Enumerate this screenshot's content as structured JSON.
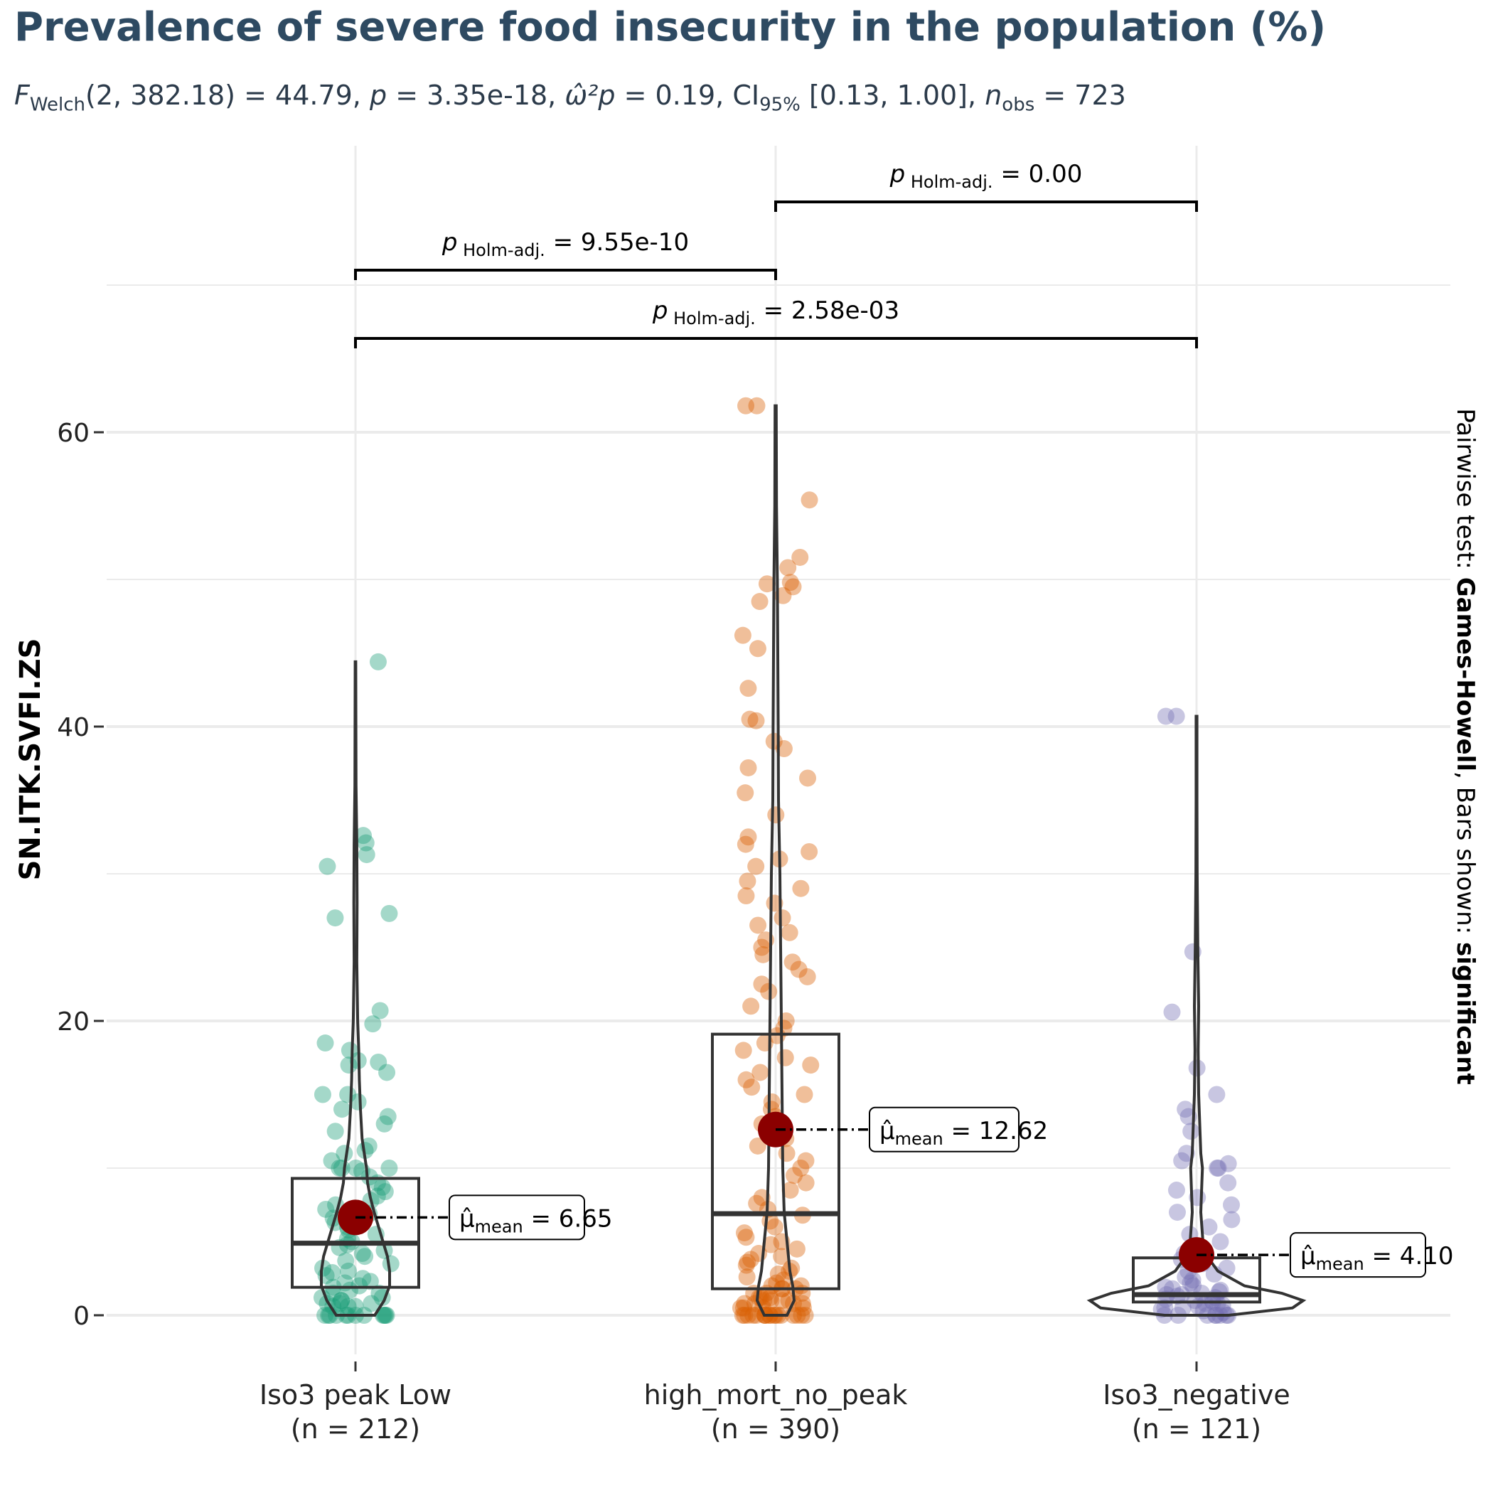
{
  "title": "Prevalence of severe food insecurity in the population (%)",
  "subtitle": {
    "stat_symbol": "F",
    "stat_sub": "Welch",
    "stat_args": "(2, 382.18)",
    "stat_value": "= 44.79,",
    "p_symbol": "p",
    "p_value": "= 3.35e-18,",
    "effect_symbol": "ω̂²p",
    "effect_value": "= 0.19,",
    "ci_label": "CI",
    "ci_sub": "95%",
    "ci_value": "[0.13, 1.00],",
    "n_symbol": "n",
    "n_sub": "obs",
    "n_value": "= 723"
  },
  "side_caption": {
    "prefix": "Pairwise test: ",
    "test": "Games-Howell",
    "middle": ", Bars shown: ",
    "shown": "significant"
  },
  "colors": {
    "group1": "#1b9e77",
    "group2": "#d95f02",
    "group3": "#7570b3",
    "mean_point": "#8b0000",
    "title": "#2e4a62",
    "grid": "#ebebeb"
  },
  "chart_data": {
    "type": "violin-box-scatter",
    "ylabel": "SN.ITK.SVFI.ZS",
    "xlabel": "",
    "ylim": [
      -4,
      80
    ],
    "yticks": [
      0,
      20,
      40,
      60
    ],
    "grid": true,
    "groups": [
      {
        "name": "Iso3 peak  Low",
        "n_label": "(n = 212)",
        "color": "#1b9e77",
        "box": {
          "q1": 1.9,
          "median": 4.9,
          "q3": 9.3
        },
        "mean": 6.65,
        "mean_label": "= 6.65",
        "points": [
          0,
          0,
          0,
          0,
          0,
          0,
          0,
          0,
          0,
          0,
          0,
          0,
          0.6,
          0.6,
          0.6,
          0.8,
          0.8,
          0.8,
          1.0,
          1.0,
          1.2,
          1.2,
          1.5,
          1.5,
          1.7,
          1.9,
          2.0,
          2.2,
          2.3,
          2.5,
          2.7,
          2.9,
          3.0,
          3.2,
          3.5,
          3.7,
          4.0,
          4.2,
          4.4,
          4.6,
          4.8,
          5.0,
          5.2,
          5.5,
          5.8,
          6.0,
          6.3,
          6.6,
          6.9,
          7.2,
          7.5,
          7.8,
          8.1,
          8.4,
          8.7,
          9.0,
          9.4,
          9.8,
          10.0,
          10.0,
          10.0,
          10.0,
          10.5,
          11.0,
          11.2,
          11.5,
          12.5,
          13.0,
          13.5,
          14.0,
          14.5,
          15.0,
          15.0,
          16.5,
          17.0,
          17.2,
          17.3,
          18.0,
          18.5,
          19.8,
          20.7,
          27.0,
          27.3,
          30.5,
          31.3,
          32.1,
          32.6,
          44.4
        ],
        "violin_profile": [
          [
            0,
            0.35
          ],
          [
            1,
            0.52
          ],
          [
            2,
            0.62
          ],
          [
            3,
            0.62
          ],
          [
            4,
            0.58
          ],
          [
            5,
            0.5
          ],
          [
            6,
            0.42
          ],
          [
            7,
            0.34
          ],
          [
            8,
            0.27
          ],
          [
            9,
            0.22
          ],
          [
            10,
            0.2
          ],
          [
            11,
            0.16
          ],
          [
            12,
            0.12
          ],
          [
            14,
            0.09
          ],
          [
            16,
            0.07
          ],
          [
            18,
            0.06
          ],
          [
            20,
            0.04
          ],
          [
            24,
            0.025
          ],
          [
            28,
            0.03
          ],
          [
            32,
            0.025
          ],
          [
            36,
            0.01
          ],
          [
            40,
            0.008
          ],
          [
            44.4,
            0.005
          ]
        ]
      },
      {
        "name": "high_mort_no_peak",
        "n_label": "(n = 390)",
        "color": "#d95f02",
        "box": {
          "q1": 1.8,
          "median": 6.9,
          "q3": 19.1
        },
        "mean": 12.62,
        "mean_label": "= 12.62",
        "points": [
          0,
          0,
          0,
          0,
          0,
          0,
          0,
          0,
          0,
          0,
          0,
          0,
          0,
          0,
          0,
          0,
          0,
          0,
          0.5,
          0.5,
          0.5,
          0.5,
          0.8,
          0.8,
          0.8,
          0.8,
          1.0,
          1.0,
          1.0,
          1.0,
          1.2,
          1.2,
          1.2,
          1.5,
          1.5,
          1.5,
          1.8,
          1.8,
          1.8,
          2.0,
          2.0,
          2.2,
          2.4,
          2.6,
          2.8,
          3.0,
          3.2,
          3.4,
          3.6,
          3.8,
          4.0,
          4.2,
          4.5,
          4.8,
          5.0,
          5.3,
          5.6,
          6.0,
          6.4,
          6.8,
          7.2,
          7.6,
          8.0,
          8.5,
          9.0,
          9.5,
          10.0,
          10.5,
          11.0,
          11.5,
          12.0,
          12.5,
          13.0,
          13.5,
          14.0,
          14.5,
          15.0,
          15.5,
          16.0,
          16.5,
          17.0,
          17.5,
          18.0,
          18.5,
          19.0,
          19.5,
          20.0,
          21.0,
          22.0,
          22.5,
          23.0,
          23.5,
          24.0,
          24.5,
          25.0,
          25.5,
          26.0,
          26.5,
          27.0,
          28.0,
          28.5,
          29.0,
          29.5,
          30.5,
          31.0,
          31.5,
          32.0,
          32.5,
          34.0,
          35.5,
          36.5,
          37.2,
          38.5,
          39.0,
          40.4,
          40.5,
          42.6,
          45.3,
          46.2,
          48.5,
          48.9,
          49.5,
          49.7,
          49.8,
          50.8,
          51.5,
          55.4,
          61.8,
          61.8
        ],
        "violin_profile": [
          [
            0,
            0.08
          ],
          [
            1,
            0.13
          ],
          [
            2,
            0.12
          ],
          [
            3,
            0.1
          ],
          [
            5,
            0.08
          ],
          [
            7,
            0.06
          ],
          [
            10,
            0.05
          ],
          [
            15,
            0.045
          ],
          [
            20,
            0.04
          ],
          [
            25,
            0.035
          ],
          [
            30,
            0.03
          ],
          [
            35,
            0.02
          ],
          [
            40,
            0.018
          ],
          [
            45,
            0.015
          ],
          [
            50,
            0.012
          ],
          [
            55,
            0.006
          ],
          [
            61.8,
            0.004
          ]
        ]
      },
      {
        "name": "Iso3_negative",
        "n_label": "(n = 121)",
        "color": "#7570b3",
        "box": {
          "q1": 0.9,
          "median": 1.4,
          "q3": 3.9
        },
        "mean": 4.1,
        "mean_label": "= 4.10",
        "points": [
          0,
          0,
          0,
          0,
          0,
          0,
          0,
          0,
          0.2,
          0.3,
          0.4,
          0.5,
          0.5,
          0.6,
          0.7,
          0.8,
          0.8,
          0.9,
          1.0,
          1.0,
          1.1,
          1.2,
          1.3,
          1.4,
          1.4,
          1.5,
          1.6,
          1.7,
          1.8,
          1.9,
          2.0,
          2.2,
          2.4,
          2.6,
          2.8,
          3.0,
          3.2,
          3.5,
          3.8,
          4.0,
          4.2,
          4.5,
          5.0,
          5.5,
          6.0,
          6.5,
          7.0,
          7.5,
          8.0,
          8.5,
          9.0,
          10.0,
          10.0,
          10.3,
          10.5,
          11.0,
          12.5,
          13.5,
          14.0,
          15.0,
          16.8,
          20.6,
          24.7,
          40.7,
          40.7
        ],
        "violin_profile": [
          [
            0,
            0.3
          ],
          [
            0.5,
            0.9
          ],
          [
            1,
            1.0
          ],
          [
            1.5,
            0.8
          ],
          [
            2,
            0.45
          ],
          [
            3,
            0.2
          ],
          [
            4,
            0.1
          ],
          [
            5,
            0.06
          ],
          [
            7,
            0.04
          ],
          [
            9,
            0.05
          ],
          [
            10,
            0.055
          ],
          [
            11,
            0.04
          ],
          [
            13,
            0.03
          ],
          [
            15,
            0.02
          ],
          [
            18,
            0.015
          ],
          [
            21,
            0.02
          ],
          [
            25,
            0.012
          ],
          [
            30,
            0.006
          ],
          [
            35,
            0.004
          ],
          [
            40.7,
            0.004
          ]
        ]
      }
    ],
    "comparisons": [
      {
        "from": 1,
        "to": 2,
        "label": "= 9.55e-10",
        "p_symbol": "p",
        "p_sub": "Holm-adj."
      },
      {
        "from": 2,
        "to": 3,
        "label": "= 0.00",
        "p_symbol": "p",
        "p_sub": "Holm-adj."
      },
      {
        "from": 1,
        "to": 3,
        "label": "= 2.58e-03",
        "p_symbol": "p",
        "p_sub": "Holm-adj."
      }
    ],
    "mean_symbol": "μ̂",
    "mean_sub": "mean"
  }
}
